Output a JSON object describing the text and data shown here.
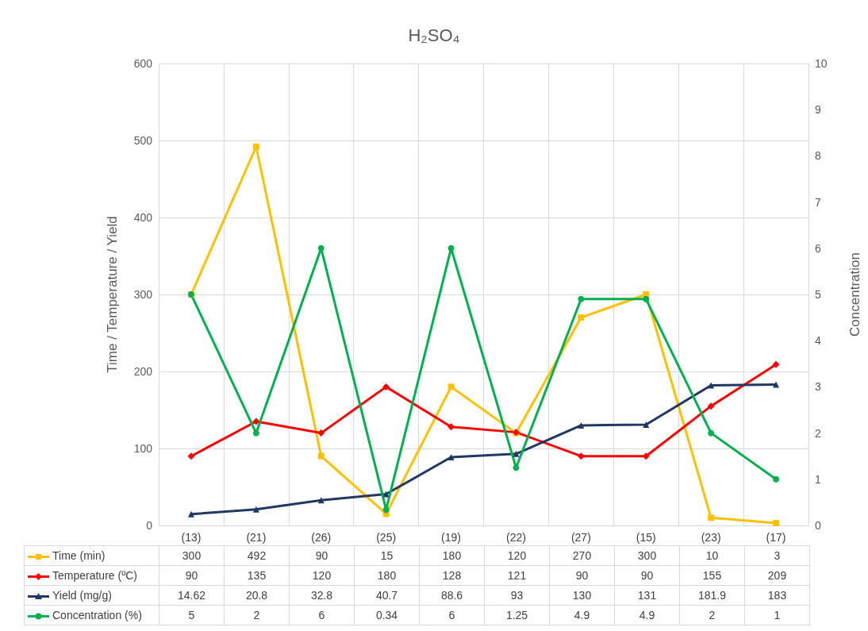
{
  "chart_data": {
    "type": "line",
    "title": "H₂SO₄",
    "ylabel": "Time / Temperature / Yield",
    "y2label": "Concentration",
    "categories": [
      "(13)",
      "(21)",
      "(26)",
      "(25)",
      "(19)",
      "(22)",
      "(27)",
      "(15)",
      "(23)",
      "(17)"
    ],
    "series": [
      {
        "name": "Time (min)",
        "color": "#ffc000",
        "marker": "square",
        "values": [
          300,
          492,
          90,
          15,
          180,
          120,
          270,
          300,
          10,
          3
        ]
      },
      {
        "name": "Temperature (ºC)",
        "color": "#ff0000",
        "marker": "diamond",
        "values": [
          90,
          135,
          120,
          180,
          128,
          121,
          90,
          90,
          155,
          209
        ]
      },
      {
        "name": "Yield (mg/g)",
        "color": "#203864",
        "marker": "triangle",
        "values": [
          14.62,
          20.8,
          32.8,
          40.7,
          88.6,
          93,
          130,
          131,
          181.9,
          183
        ]
      },
      {
        "name": "Concentration (%)",
        "color": "#00b050",
        "marker": "circle",
        "axis": "y2",
        "values": [
          5,
          2,
          6,
          0.34,
          6,
          1.25,
          4.9,
          4.9,
          2,
          1
        ]
      }
    ],
    "ylim": [
      0,
      600
    ],
    "yticks": [
      0,
      100,
      200,
      300,
      400,
      500,
      600
    ],
    "y2lim": [
      0,
      10
    ],
    "y2ticks": [
      0,
      1,
      2,
      3,
      4,
      5,
      6,
      7,
      8,
      9,
      10
    ],
    "grid": true,
    "legend": "bottom",
    "data_labels": true,
    "line_style": "solid"
  }
}
